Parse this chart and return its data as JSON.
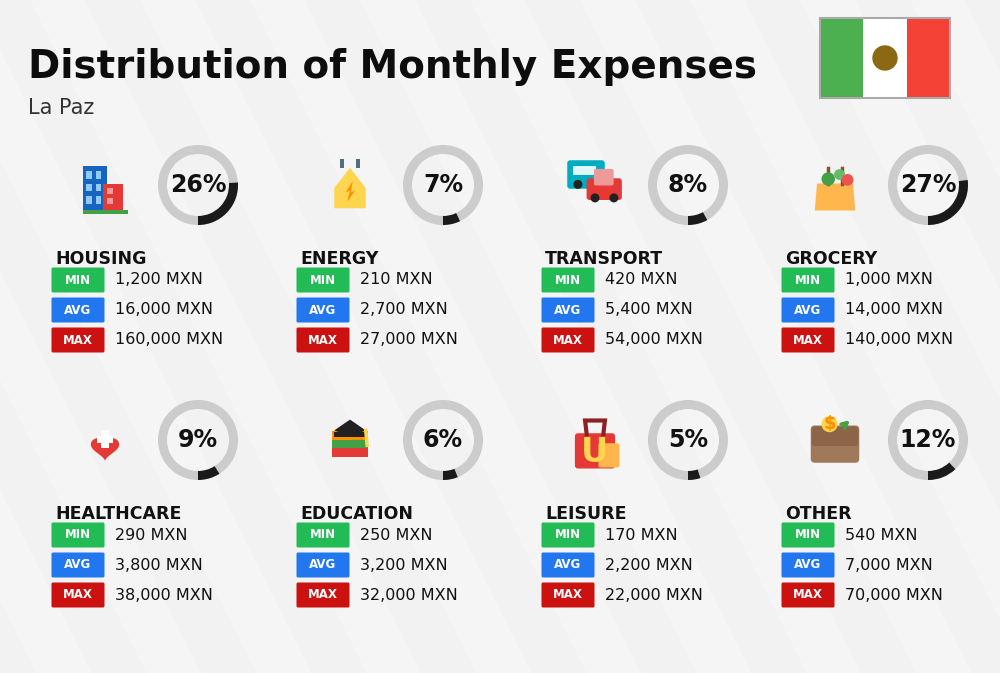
{
  "title": "Distribution of Monthly Expenses",
  "subtitle": "La Paz",
  "bg_color": "#f2f2f2",
  "categories": [
    {
      "name": "HOUSING",
      "pct": 26,
      "min_val": "1,200 MXN",
      "avg_val": "16,000 MXN",
      "max_val": "160,000 MXN",
      "col": 0,
      "row": 0
    },
    {
      "name": "ENERGY",
      "pct": 7,
      "min_val": "210 MXN",
      "avg_val": "2,700 MXN",
      "max_val": "27,000 MXN",
      "col": 1,
      "row": 0
    },
    {
      "name": "TRANSPORT",
      "pct": 8,
      "min_val": "420 MXN",
      "avg_val": "5,400 MXN",
      "max_val": "54,000 MXN",
      "col": 2,
      "row": 0
    },
    {
      "name": "GROCERY",
      "pct": 27,
      "min_val": "1,000 MXN",
      "avg_val": "14,000 MXN",
      "max_val": "140,000 MXN",
      "col": 3,
      "row": 0
    },
    {
      "name": "HEALTHCARE",
      "pct": 9,
      "min_val": "290 MXN",
      "avg_val": "3,800 MXN",
      "max_val": "38,000 MXN",
      "col": 0,
      "row": 1
    },
    {
      "name": "EDUCATION",
      "pct": 6,
      "min_val": "250 MXN",
      "avg_val": "3,200 MXN",
      "max_val": "32,000 MXN",
      "col": 1,
      "row": 1
    },
    {
      "name": "LEISURE",
      "pct": 5,
      "min_val": "170 MXN",
      "avg_val": "2,200 MXN",
      "max_val": "22,000 MXN",
      "col": 2,
      "row": 1
    },
    {
      "name": "OTHER",
      "pct": 12,
      "min_val": "540 MXN",
      "avg_val": "7,000 MXN",
      "max_val": "70,000 MXN",
      "col": 3,
      "row": 1
    }
  ],
  "color_min": "#22bb55",
  "color_avg": "#2277ee",
  "color_max": "#cc1111",
  "arc_color": "#1a1a1a",
  "arc_bg_color": "#cccccc",
  "title_fontsize": 28,
  "subtitle_fontsize": 15,
  "category_fontsize": 12.5,
  "value_fontsize": 11.5,
  "pct_fontsize": 17,
  "badge_fontsize": 8.5
}
